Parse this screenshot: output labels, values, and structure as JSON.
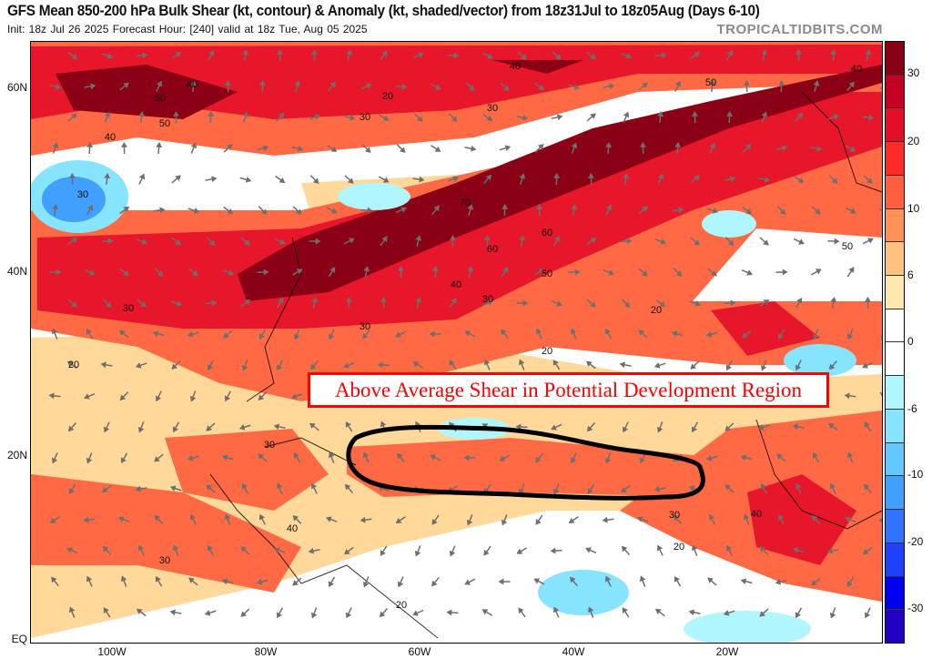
{
  "header": {
    "title": "GFS Mean 850-200 hPa Bulk Shear (kt, contour) & Anomaly (kt, shaded/vector) from 18z31Jul to 18z05Aug (Days 6-10)",
    "subtitle": "Init: 18z Jul 26 2025   Forecast Hour: [240]   valid at 18z Tue, Aug 05 2025",
    "brand": "TROPICALTIDBITS.COM"
  },
  "map": {
    "lat_labels": [
      "60N",
      "40N",
      "20N",
      "EQ"
    ],
    "lon_labels": [
      "100W",
      "80W",
      "60W",
      "40W",
      "20W"
    ],
    "annotation": "Above Average Shear in Potential Development Region",
    "annotation_color": "#ff0000",
    "highlighted_region": "black-ellipse-main-development-region",
    "contour_labels": [
      "40",
      "50",
      "40",
      "50",
      "20",
      "30",
      "30",
      "40",
      "30",
      "70",
      "60",
      "60",
      "50",
      "40",
      "30",
      "20",
      "30",
      "20",
      "30",
      "20",
      "30",
      "40",
      "20",
      "30",
      "20",
      "50",
      "40",
      "30",
      "50",
      "40"
    ]
  },
  "colorbar": {
    "labels": [
      "30",
      "20",
      "10",
      "6",
      "0",
      "-6",
      "-10",
      "-20",
      "-30"
    ],
    "colors": [
      "#8c0016",
      "#c50020",
      "#e60d28",
      "#ff2b2b",
      "#ff5f40",
      "#ff9158",
      "#ffc17f",
      "#ffe9ab",
      "#ffffff",
      "#ffffff",
      "#b0f6ff",
      "#86e4ff",
      "#62c6ff",
      "#409fff",
      "#2f73ff",
      "#1e40ff",
      "#0000f0",
      "#2400c4"
    ]
  }
}
